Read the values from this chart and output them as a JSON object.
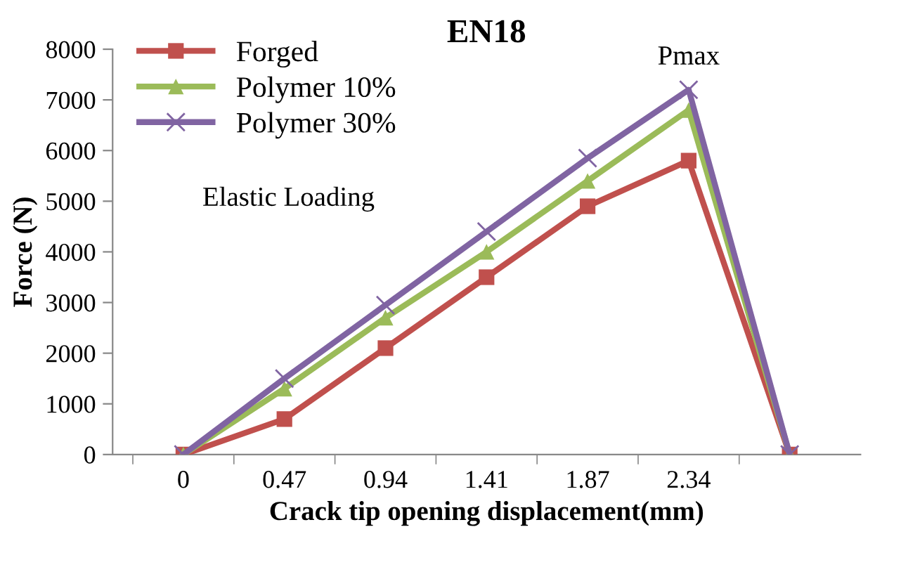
{
  "chart_data": {
    "type": "line",
    "title": "EN18",
    "xlabel": "Crack tip opening displacement(mm)",
    "ylabel": "Force (N)",
    "categories": [
      "0",
      "0.47",
      "0.94",
      "1.41",
      "1.87",
      "2.34",
      null
    ],
    "series": [
      {
        "name": "Forged",
        "color": "#c0504d",
        "marker": "square",
        "values": [
          0,
          700,
          2100,
          3500,
          4900,
          5800,
          0
        ]
      },
      {
        "name": "Polymer 10%",
        "color": "#9bbb59",
        "marker": "triangle",
        "values": [
          0,
          1300,
          2700,
          4000,
          5400,
          6800,
          0
        ]
      },
      {
        "name": "Polymer 30%",
        "color": "#8064a2",
        "marker": "cross",
        "values": [
          0,
          1500,
          2950,
          4400,
          5850,
          7200,
          0
        ]
      }
    ],
    "ylim": [
      0,
      8000
    ],
    "yticks": [
      0,
      1000,
      2000,
      3000,
      4000,
      5000,
      6000,
      7000,
      8000
    ],
    "grid": false,
    "legend": "top left",
    "line_style": "solid",
    "annotations": [
      "Elastic Loading",
      {
        "text": "Pmax",
        "x": "2.34",
        "y": 7200
      }
    ]
  }
}
